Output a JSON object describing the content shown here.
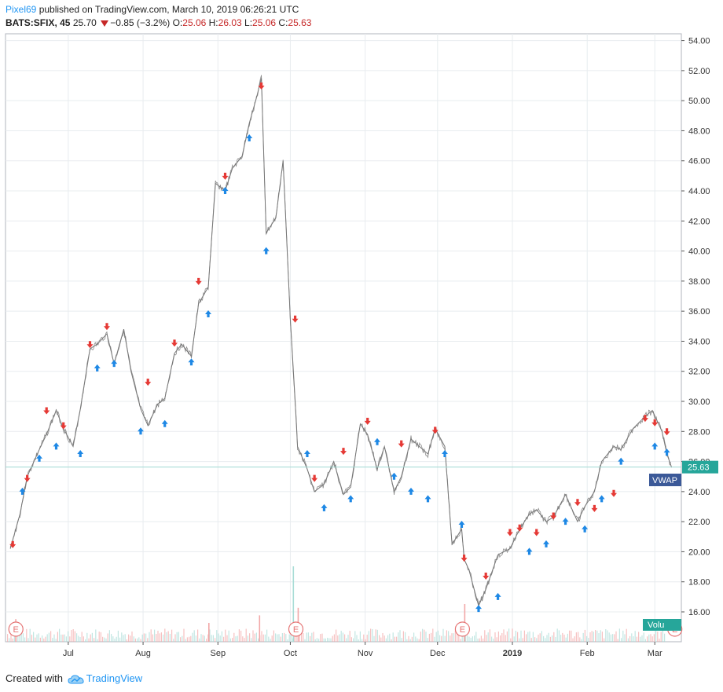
{
  "header": {
    "username": "Pixel69",
    "published_text": " published on TradingView.com, March 10, 2019 06:26:21 UTC",
    "symbol": "BATS:SFIX, 45",
    "last": "25.70",
    "change": "−0.85 (−3.2%)",
    "open_label": "O:",
    "open": "25.06",
    "high_label": "H:",
    "high": "26.03",
    "low_label": "L:",
    "low": "25.06",
    "close_label": "C:",
    "close": "25.63"
  },
  "footer": {
    "created_with": "Created with",
    "brand": "TradingView"
  },
  "colors": {
    "price_line": "#8c8c8c",
    "grid": "#e8ecef",
    "buy_signal": "#1e88e5",
    "sell_signal": "#e53935",
    "last_price_badge": "#26a69a",
    "vwap_badge": "#3b5998",
    "volume_bar": "#f2a7a7",
    "earnings_marker": "#e57373"
  },
  "chart_data": {
    "type": "line",
    "title": "",
    "symbol": "BATS:SFIX",
    "interval": "45",
    "y_axis": {
      "min": 16,
      "max": 54,
      "position": "right",
      "tick_labels": [
        "54.00",
        "52.00",
        "50.00",
        "48.00",
        "46.00",
        "44.00",
        "42.00",
        "40.00",
        "38.00",
        "36.00",
        "34.00",
        "32.00",
        "30.00",
        "28.00",
        "26.00",
        "24.00",
        "22.00",
        "20.00",
        "18.00",
        "16.00"
      ]
    },
    "x_axis": {
      "tick_labels": [
        "Jul",
        "Aug",
        "Sep",
        "Oct",
        "Nov",
        "Dec",
        "2019",
        "Feb",
        "Mar"
      ],
      "bold_labels": [
        "2019"
      ]
    },
    "grid": true,
    "series": [
      {
        "x": [
          "2018-06-07",
          "2018-06-11",
          "2018-06-14",
          "2018-06-19",
          "2018-06-22",
          "2018-06-26",
          "2018-06-29",
          "2018-07-03",
          "2018-07-06",
          "2018-07-10",
          "2018-07-13",
          "2018-07-17",
          "2018-07-20",
          "2018-07-24",
          "2018-07-27",
          "2018-07-31",
          "2018-08-03",
          "2018-08-07",
          "2018-08-10",
          "2018-08-14",
          "2018-08-17",
          "2018-08-21",
          "2018-08-24",
          "2018-08-28",
          "2018-08-31",
          "2018-09-04",
          "2018-09-07",
          "2018-09-11",
          "2018-09-14",
          "2018-09-17",
          "2018-09-19",
          "2018-09-21",
          "2018-09-25",
          "2018-09-28",
          "2018-10-01",
          "2018-10-03",
          "2018-10-04",
          "2018-10-08",
          "2018-10-11",
          "2018-10-15",
          "2018-10-19",
          "2018-10-23",
          "2018-10-26",
          "2018-10-30",
          "2018-11-02",
          "2018-11-06",
          "2018-11-09",
          "2018-11-13",
          "2018-11-16",
          "2018-11-20",
          "2018-11-27",
          "2018-11-30",
          "2018-12-04",
          "2018-12-07",
          "2018-12-11",
          "2018-12-12",
          "2018-12-14",
          "2018-12-18",
          "2018-12-21",
          "2018-12-26",
          "2018-12-31",
          "2019-01-04",
          "2019-01-08",
          "2019-01-11",
          "2019-01-15",
          "2019-01-18",
          "2019-01-23",
          "2019-01-28",
          "2019-01-31",
          "2019-02-04",
          "2019-02-07",
          "2019-02-12",
          "2019-02-15",
          "2019-02-20",
          "2019-02-25",
          "2019-02-28",
          "2019-03-04",
          "2019-03-06",
          "2019-03-08"
        ],
        "y": [
          20.2,
          22.5,
          25.0,
          26.8,
          27.8,
          29.4,
          28.2,
          27.0,
          29.5,
          33.5,
          33.8,
          34.5,
          32.5,
          34.8,
          32.0,
          29.5,
          28.4,
          29.8,
          30.2,
          33.2,
          33.8,
          33.0,
          36.5,
          37.6,
          44.5,
          44.0,
          45.5,
          46.3,
          48.5,
          50.2,
          51.5,
          41.2,
          42.2,
          46.0,
          35.5,
          30.0,
          27.0,
          25.5,
          24.0,
          24.5,
          26.0,
          23.8,
          24.3,
          28.5,
          27.8,
          25.5,
          27.0,
          24.0,
          25.0,
          27.5,
          26.5,
          28.2,
          27.0,
          20.5,
          21.5,
          19.5,
          18.8,
          16.4,
          17.5,
          19.8,
          20.2,
          21.5,
          22.5,
          22.8,
          22.0,
          22.3,
          23.8,
          22.0,
          23.0,
          24.0,
          26.0,
          27.0,
          26.8,
          28.2,
          29.0,
          29.4,
          28.0,
          26.5,
          25.6
        ]
      }
    ],
    "buy_signals": [
      [
        "2018-06-12",
        24.0
      ],
      [
        "2018-06-19",
        26.2
      ],
      [
        "2018-06-26",
        27.0
      ],
      [
        "2018-07-06",
        26.5
      ],
      [
        "2018-07-13",
        32.2
      ],
      [
        "2018-07-20",
        32.5
      ],
      [
        "2018-07-31",
        28.0
      ],
      [
        "2018-08-10",
        28.5
      ],
      [
        "2018-08-21",
        32.6
      ],
      [
        "2018-08-28",
        35.8
      ],
      [
        "2018-09-04",
        44.0
      ],
      [
        "2018-09-14",
        47.5
      ],
      [
        "2018-09-21",
        40.0
      ],
      [
        "2018-10-08",
        26.5
      ],
      [
        "2018-10-15",
        22.9
      ],
      [
        "2018-10-26",
        23.5
      ],
      [
        "2018-11-06",
        27.3
      ],
      [
        "2018-11-13",
        25.0
      ],
      [
        "2018-11-20",
        24.0
      ],
      [
        "2018-11-27",
        23.5
      ],
      [
        "2018-12-04",
        26.5
      ],
      [
        "2018-12-11",
        21.8
      ],
      [
        "2018-12-18",
        16.2
      ],
      [
        "2018-12-26",
        17.0
      ],
      [
        "2019-01-08",
        20.0
      ],
      [
        "2019-01-15",
        20.5
      ],
      [
        "2019-01-23",
        22.0
      ],
      [
        "2019-01-31",
        21.5
      ],
      [
        "2019-02-07",
        23.5
      ],
      [
        "2019-02-15",
        26.0
      ],
      [
        "2019-03-01",
        27.0
      ],
      [
        "2019-03-06",
        26.6
      ]
    ],
    "sell_signals": [
      [
        "2018-06-08",
        20.5
      ],
      [
        "2018-06-14",
        24.9
      ],
      [
        "2018-06-22",
        29.4
      ],
      [
        "2018-06-29",
        28.4
      ],
      [
        "2018-07-10",
        33.8
      ],
      [
        "2018-07-17",
        35.0
      ],
      [
        "2018-08-03",
        31.3
      ],
      [
        "2018-08-14",
        33.9
      ],
      [
        "2018-08-24",
        38.0
      ],
      [
        "2018-09-04",
        45.0
      ],
      [
        "2018-09-19",
        51.0
      ],
      [
        "2018-10-03",
        35.5
      ],
      [
        "2018-10-11",
        24.9
      ],
      [
        "2018-10-23",
        26.7
      ],
      [
        "2018-11-02",
        28.7
      ],
      [
        "2018-11-16",
        27.2
      ],
      [
        "2018-11-30",
        28.1
      ],
      [
        "2018-12-12",
        19.6
      ],
      [
        "2018-12-21",
        18.4
      ],
      [
        "2018-12-31",
        21.3
      ],
      [
        "2019-01-04",
        21.6
      ],
      [
        "2019-01-11",
        21.3
      ],
      [
        "2019-01-18",
        22.4
      ],
      [
        "2019-01-28",
        23.3
      ],
      [
        "2019-02-04",
        22.9
      ],
      [
        "2019-02-12",
        23.9
      ],
      [
        "2019-02-25",
        28.9
      ],
      [
        "2019-03-01",
        28.6
      ],
      [
        "2019-03-06",
        28.0
      ]
    ],
    "earnings_markers": [
      "2018-06-08",
      "2018-10-02",
      "2018-12-10",
      "2019-03-08"
    ],
    "volume": {
      "label": "Volu",
      "spikes": [
        [
          "2018-10-02",
          1.0
        ],
        [
          "2018-10-04",
          0.45
        ],
        [
          "2018-12-12",
          0.5
        ],
        [
          "2018-09-18",
          0.35
        ],
        [
          "2018-08-28",
          0.25
        ],
        [
          "2018-06-09",
          0.3
        ]
      ]
    },
    "vwap_label": "VWAP",
    "last_price": 25.63,
    "last_price_label": "25.63",
    "horizontal_line_price": 25.63
  }
}
